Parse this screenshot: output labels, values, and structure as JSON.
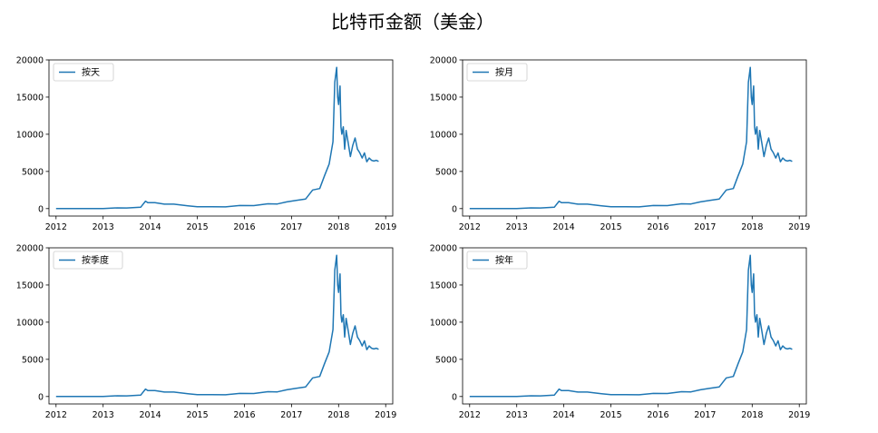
{
  "figure": {
    "title": "比特币金额（美金）"
  },
  "chart_data": [
    {
      "type": "line",
      "legend": "按天",
      "legend_position": "top-left",
      "x_ticks": [
        "2012",
        "2013",
        "2014",
        "2015",
        "2016",
        "2017",
        "2018",
        "2019"
      ],
      "y_ticks": [
        "0",
        "5000",
        "10000",
        "15000",
        "20000"
      ],
      "xlim": [
        2011.85,
        2019.15
      ],
      "ylim": [
        -1000,
        20000
      ],
      "series": [
        {
          "color": "#1f77b4",
          "x": [
            2012.0,
            2012.5,
            2013.0,
            2013.3,
            2013.5,
            2013.8,
            2013.9,
            2013.95,
            2014.1,
            2014.3,
            2014.5,
            2014.8,
            2015.0,
            2015.3,
            2015.6,
            2015.9,
            2016.2,
            2016.5,
            2016.7,
            2016.9,
            2017.1,
            2017.3,
            2017.45,
            2017.6,
            2017.7,
            2017.8,
            2017.88,
            2017.92,
            2017.96,
            2017.98,
            2018.0,
            2018.03,
            2018.05,
            2018.07,
            2018.1,
            2018.13,
            2018.16,
            2018.2,
            2018.25,
            2018.3,
            2018.35,
            2018.4,
            2018.45,
            2018.5,
            2018.55,
            2018.6,
            2018.65,
            2018.7,
            2018.75,
            2018.8,
            2018.85
          ],
          "y": [
            5,
            8,
            13,
            100,
            90,
            200,
            1000,
            800,
            800,
            600,
            600,
            380,
            250,
            240,
            230,
            420,
            400,
            650,
            620,
            900,
            1100,
            1300,
            2500,
            2700,
            4400,
            6000,
            9000,
            17000,
            19000,
            15000,
            14000,
            16500,
            11000,
            10000,
            11000,
            8000,
            10500,
            9000,
            7000,
            8500,
            9500,
            8000,
            7500,
            6800,
            7500,
            6300,
            6800,
            6500,
            6400,
            6500,
            6350
          ]
        }
      ]
    },
    {
      "type": "line",
      "legend": "按月",
      "legend_position": "top-left",
      "x_ticks": [
        "2012",
        "2013",
        "2014",
        "2015",
        "2016",
        "2017",
        "2018",
        "2019"
      ],
      "y_ticks": [
        "0",
        "5000",
        "10000",
        "15000",
        "20000"
      ],
      "xlim": [
        2011.85,
        2019.15
      ],
      "ylim": [
        -1000,
        20000
      ],
      "series": [
        {
          "color": "#1f77b4",
          "x": [
            2012.0,
            2012.5,
            2013.0,
            2013.3,
            2013.5,
            2013.8,
            2013.9,
            2013.95,
            2014.1,
            2014.3,
            2014.5,
            2014.8,
            2015.0,
            2015.3,
            2015.6,
            2015.9,
            2016.2,
            2016.5,
            2016.7,
            2016.9,
            2017.1,
            2017.3,
            2017.45,
            2017.6,
            2017.7,
            2017.8,
            2017.88,
            2017.92,
            2017.96,
            2017.98,
            2018.0,
            2018.03,
            2018.05,
            2018.07,
            2018.1,
            2018.13,
            2018.16,
            2018.2,
            2018.25,
            2018.3,
            2018.35,
            2018.4,
            2018.45,
            2018.5,
            2018.55,
            2018.6,
            2018.65,
            2018.7,
            2018.75,
            2018.8,
            2018.85
          ],
          "y": [
            5,
            8,
            13,
            100,
            90,
            200,
            1000,
            800,
            800,
            600,
            600,
            380,
            250,
            240,
            230,
            420,
            400,
            650,
            620,
            900,
            1100,
            1300,
            2500,
            2700,
            4400,
            6000,
            9000,
            17000,
            19000,
            15000,
            14000,
            16500,
            11000,
            10000,
            11000,
            8000,
            10500,
            9000,
            7000,
            8500,
            9500,
            8000,
            7500,
            6800,
            7500,
            6300,
            6800,
            6500,
            6400,
            6500,
            6350
          ]
        }
      ]
    },
    {
      "type": "line",
      "legend": "按季度",
      "legend_position": "top-left",
      "x_ticks": [
        "2012",
        "2013",
        "2014",
        "2015",
        "2016",
        "2017",
        "2018",
        "2019"
      ],
      "y_ticks": [
        "0",
        "5000",
        "10000",
        "15000",
        "20000"
      ],
      "xlim": [
        2011.85,
        2019.15
      ],
      "ylim": [
        -1000,
        20000
      ],
      "series": [
        {
          "color": "#1f77b4",
          "x": [
            2012.0,
            2012.5,
            2013.0,
            2013.3,
            2013.5,
            2013.8,
            2013.9,
            2013.95,
            2014.1,
            2014.3,
            2014.5,
            2014.8,
            2015.0,
            2015.3,
            2015.6,
            2015.9,
            2016.2,
            2016.5,
            2016.7,
            2016.9,
            2017.1,
            2017.3,
            2017.45,
            2017.6,
            2017.7,
            2017.8,
            2017.88,
            2017.92,
            2017.96,
            2017.98,
            2018.0,
            2018.03,
            2018.05,
            2018.07,
            2018.1,
            2018.13,
            2018.16,
            2018.2,
            2018.25,
            2018.3,
            2018.35,
            2018.4,
            2018.45,
            2018.5,
            2018.55,
            2018.6,
            2018.65,
            2018.7,
            2018.75,
            2018.8,
            2018.85
          ],
          "y": [
            5,
            8,
            13,
            100,
            90,
            200,
            1000,
            800,
            800,
            600,
            600,
            380,
            250,
            240,
            230,
            420,
            400,
            650,
            620,
            900,
            1100,
            1300,
            2500,
            2700,
            4400,
            6000,
            9000,
            17000,
            19000,
            15000,
            14000,
            16500,
            11000,
            10000,
            11000,
            8000,
            10500,
            9000,
            7000,
            8500,
            9500,
            8000,
            7500,
            6800,
            7500,
            6300,
            6800,
            6500,
            6400,
            6500,
            6350
          ]
        }
      ]
    },
    {
      "type": "line",
      "legend": "按年",
      "legend_position": "top-left",
      "x_ticks": [
        "2012",
        "2013",
        "2014",
        "2015",
        "2016",
        "2017",
        "2018",
        "2019"
      ],
      "y_ticks": [
        "0",
        "5000",
        "10000",
        "15000",
        "20000"
      ],
      "xlim": [
        2011.85,
        2019.15
      ],
      "ylim": [
        -1000,
        20000
      ],
      "series": [
        {
          "color": "#1f77b4",
          "x": [
            2012.0,
            2012.5,
            2013.0,
            2013.3,
            2013.5,
            2013.8,
            2013.9,
            2013.95,
            2014.1,
            2014.3,
            2014.5,
            2014.8,
            2015.0,
            2015.3,
            2015.6,
            2015.9,
            2016.2,
            2016.5,
            2016.7,
            2016.9,
            2017.1,
            2017.3,
            2017.45,
            2017.6,
            2017.7,
            2017.8,
            2017.88,
            2017.92,
            2017.96,
            2017.98,
            2018.0,
            2018.03,
            2018.05,
            2018.07,
            2018.1,
            2018.13,
            2018.16,
            2018.2,
            2018.25,
            2018.3,
            2018.35,
            2018.4,
            2018.45,
            2018.5,
            2018.55,
            2018.6,
            2018.65,
            2018.7,
            2018.75,
            2018.8,
            2018.85
          ],
          "y": [
            5,
            8,
            13,
            100,
            90,
            200,
            1000,
            800,
            800,
            600,
            600,
            380,
            250,
            240,
            230,
            420,
            400,
            650,
            620,
            900,
            1100,
            1300,
            2500,
            2700,
            4400,
            6000,
            9000,
            17000,
            19000,
            15000,
            14000,
            16500,
            11000,
            10000,
            11000,
            8000,
            10500,
            9000,
            7000,
            8500,
            9500,
            8000,
            7500,
            6800,
            7500,
            6300,
            6800,
            6500,
            6400,
            6500,
            6350
          ]
        }
      ]
    }
  ]
}
